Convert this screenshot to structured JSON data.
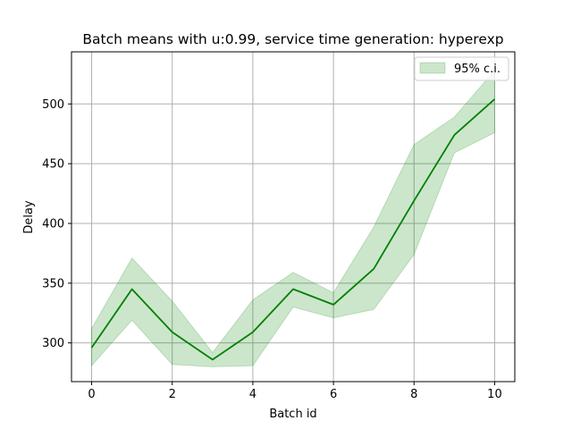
{
  "chart_data": {
    "type": "line",
    "title": "Batch means with u:0.99, service time generation: hyperexp",
    "xlabel": "Batch id",
    "ylabel": "Delay",
    "x": [
      0,
      1,
      2,
      3,
      4,
      5,
      6,
      7,
      8,
      9,
      10
    ],
    "series": [
      {
        "values": [
          296,
          345,
          309,
          286,
          309,
          345,
          332,
          362,
          419,
          474,
          504
        ],
        "color": "#008000"
      }
    ],
    "band": {
      "name": "95% c.i.",
      "lower": [
        281,
        319,
        282,
        280,
        281,
        330,
        321,
        328,
        374,
        459,
        476
      ],
      "upper": [
        312,
        371,
        335,
        292,
        336,
        359,
        342,
        397,
        466,
        489,
        528
      ],
      "color": "#008000",
      "opacity": 0.2
    },
    "xlim": [
      -0.5,
      10.5
    ],
    "ylim": [
      267.6,
      543.6
    ],
    "xticks": [
      0,
      2,
      4,
      6,
      8,
      10
    ],
    "yticks": [
      300,
      350,
      400,
      450,
      500
    ],
    "grid": true,
    "legend_position": "upper right"
  }
}
